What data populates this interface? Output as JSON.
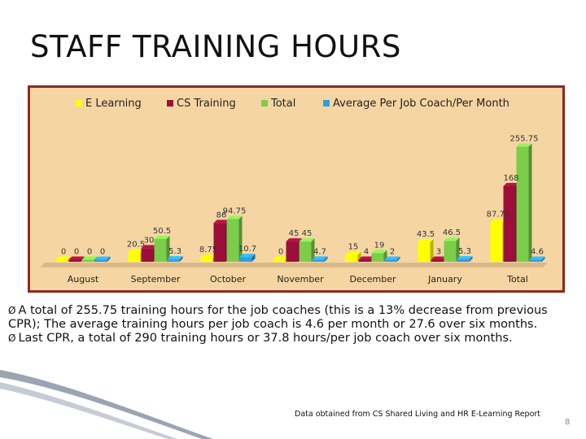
{
  "slide": {
    "title": "STAFF TRAINING HOURS",
    "bullets": [
      {
        "marker": "Ø",
        "text": "A total of 255.75 training hours for the job coaches (this is a 13% decrease from previous CPR); The average training hours per job coach is 4.6 per month or 27.6 over six months."
      },
      {
        "marker": "Ø",
        "text": "Last CPR, a total of 290  training hours or 37.8 hours/per job coach over six months."
      }
    ],
    "source": "Data obtained from CS Shared Living and HR E-Learning Report",
    "page_number": "8"
  },
  "chart_data": {
    "type": "bar",
    "categories": [
      "August",
      "September",
      "October",
      "November",
      "December",
      "January",
      "Total"
    ],
    "series": [
      {
        "name": "E Learning",
        "color": "#ffff00",
        "values": [
          0,
          20.5,
          8.75,
          0,
          15,
          43.5,
          87.75
        ],
        "labels": [
          "0",
          "20.5",
          "8.75",
          "0",
          "15",
          "43.5",
          "87.75"
        ]
      },
      {
        "name": "CS Training",
        "color": "#9b0f3a",
        "values": [
          0,
          30,
          86,
          45,
          4,
          3,
          168
        ],
        "labels": [
          "0",
          "30",
          "86",
          "45",
          "4",
          "3",
          "168"
        ]
      },
      {
        "name": "Total",
        "color": "#7ccd4a",
        "values": [
          0,
          50.5,
          94.75,
          45,
          19,
          46.5,
          255.75
        ],
        "labels": [
          "0",
          "50.5",
          "94.75",
          "45",
          "19",
          "46.5",
          "255.75"
        ]
      },
      {
        "name": "Average Per Job Coach/Per Month",
        "color": "#2f9ee0",
        "values": [
          0,
          5.3,
          10.7,
          4.7,
          2,
          5.3,
          4.6
        ],
        "labels": [
          "0",
          "5.3",
          "10.7",
          "4.7",
          "2",
          "5.3",
          "4.6"
        ]
      }
    ],
    "ylim": [
      0,
      260
    ],
    "grid": false,
    "legend": "top"
  }
}
